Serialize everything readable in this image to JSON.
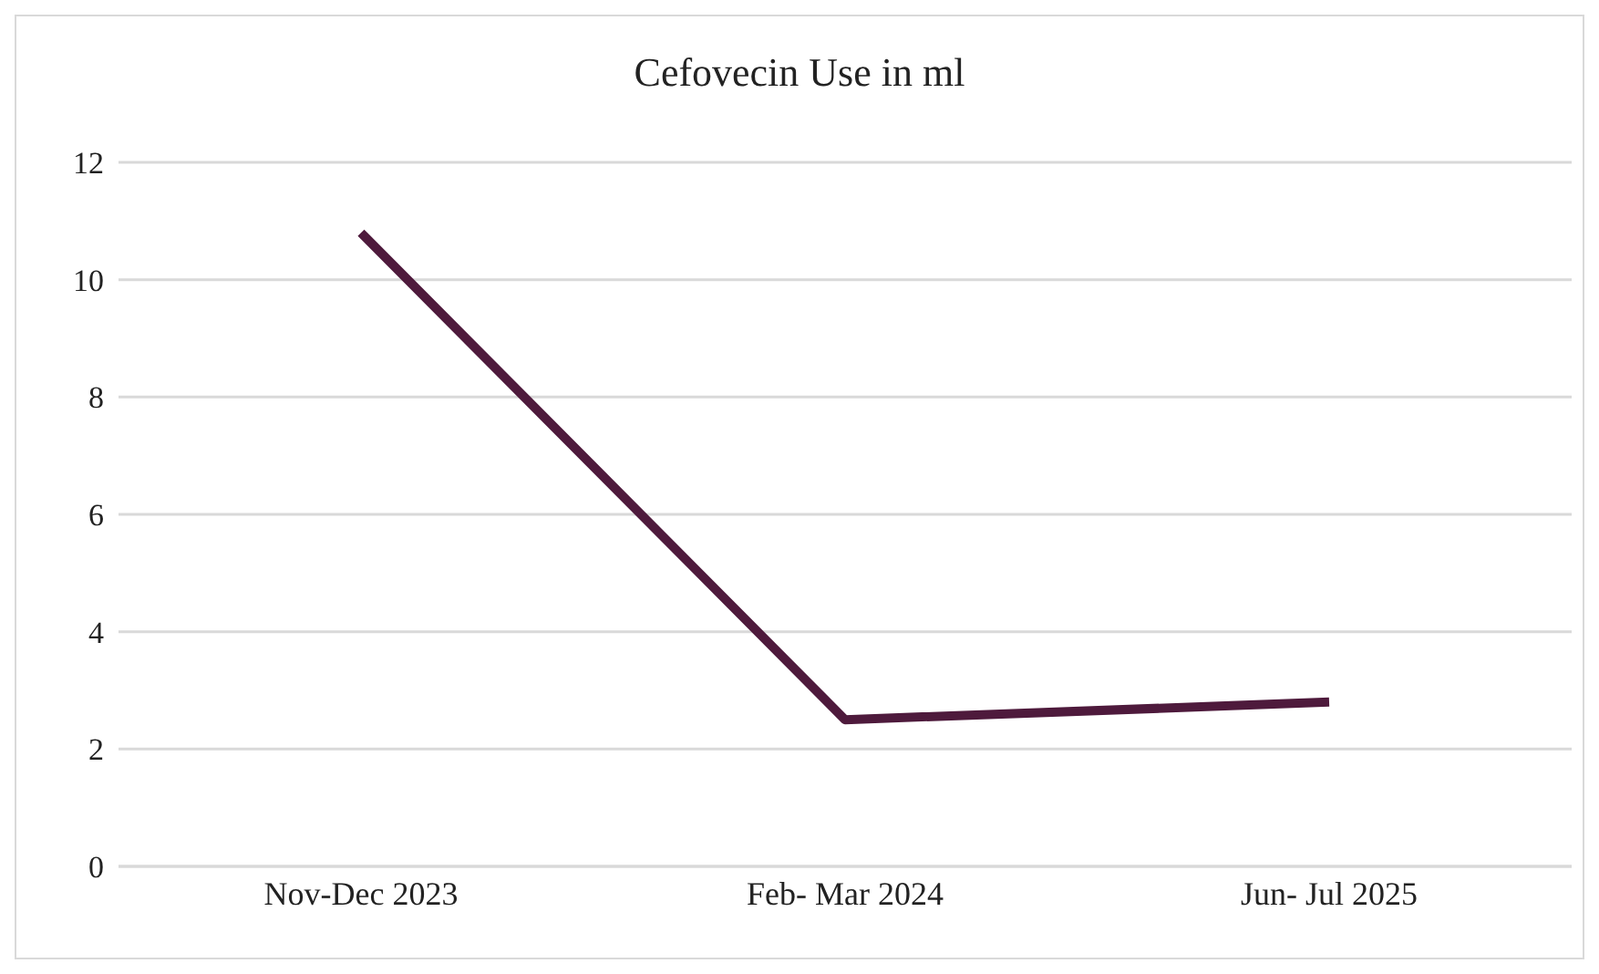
{
  "chart_data": {
    "type": "line",
    "title": "Cefovecin Use in ml",
    "categories": [
      "Nov-Dec 2023",
      "Feb- Mar 2024",
      "Jun- Jul 2025"
    ],
    "series": [
      {
        "color": "#4e1a3c",
        "values": [
          10.8,
          2.5,
          2.8
        ]
      }
    ],
    "ylim": [
      0,
      12
    ],
    "yticks": [
      0,
      2,
      4,
      6,
      8,
      10,
      12
    ],
    "grid": "y",
    "marker": "none",
    "line_style": "solid"
  }
}
